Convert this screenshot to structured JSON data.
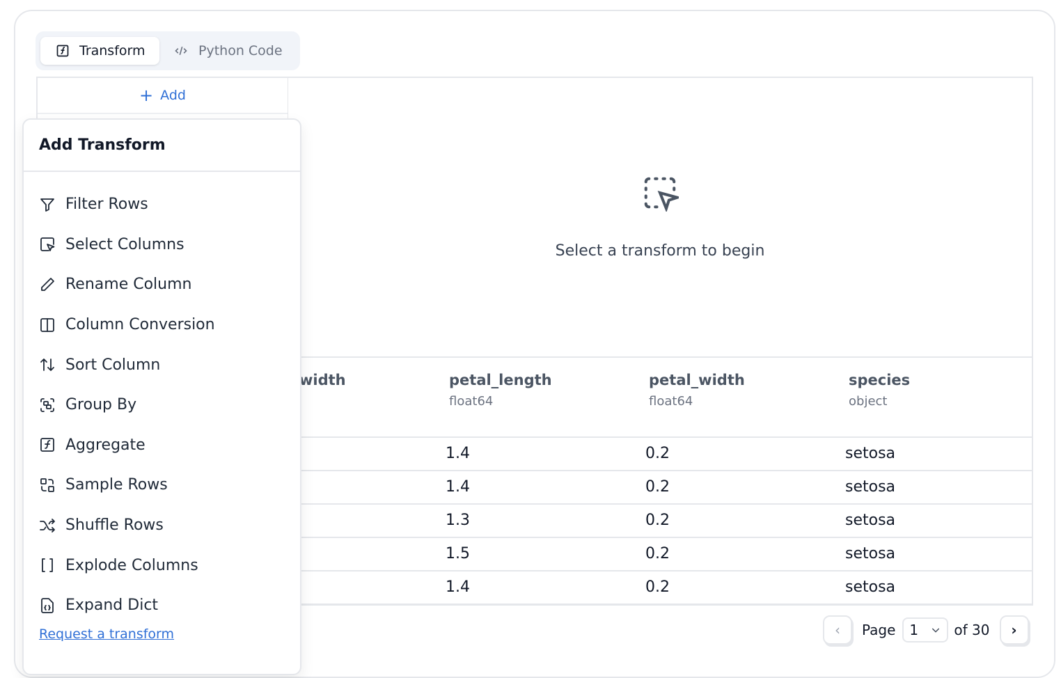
{
  "tabs": [
    {
      "label": "Transform",
      "icon": "function-square-icon",
      "active": true
    },
    {
      "label": "Python Code",
      "icon": "code-icon",
      "active": false
    }
  ],
  "left_panel": {
    "add_label": "Add"
  },
  "empty_state": {
    "icon": "dashed-select-pointer-icon",
    "text": "Select a transform to begin"
  },
  "table": {
    "columns": [
      {
        "name": "width",
        "type": ""
      },
      {
        "name": "petal_length",
        "type": "float64"
      },
      {
        "name": "petal_width",
        "type": "float64"
      },
      {
        "name": "species",
        "type": "object"
      }
    ],
    "rows": [
      [
        "1.4",
        "0.2",
        "setosa"
      ],
      [
        "1.4",
        "0.2",
        "setosa"
      ],
      [
        "1.3",
        "0.2",
        "setosa"
      ],
      [
        "1.5",
        "0.2",
        "setosa"
      ],
      [
        "1.4",
        "0.2",
        "setosa"
      ]
    ]
  },
  "pagination": {
    "page_label": "Page",
    "current_page": "1",
    "of_label": "of 30"
  },
  "popup": {
    "title": "Add Transform",
    "items": [
      {
        "label": "Filter Rows",
        "icon": "filter-icon"
      },
      {
        "label": "Select Columns",
        "icon": "select-pointer-icon"
      },
      {
        "label": "Rename Column",
        "icon": "pencil-icon"
      },
      {
        "label": "Column Conversion",
        "icon": "columns-icon"
      },
      {
        "label": "Sort Column",
        "icon": "sort-arrows-icon"
      },
      {
        "label": "Group By",
        "icon": "group-icon"
      },
      {
        "label": "Aggregate",
        "icon": "function-square-icon"
      },
      {
        "label": "Sample Rows",
        "icon": "sample-icon"
      },
      {
        "label": "Shuffle Rows",
        "icon": "shuffle-icon"
      },
      {
        "label": "Explode Columns",
        "icon": "brackets-icon"
      },
      {
        "label": "Expand Dict",
        "icon": "file-braces-icon"
      }
    ],
    "request_link": "Request a transform"
  },
  "colors": {
    "accent": "#2f6fd6",
    "border": "#e5e7eb",
    "tab_bg": "#f1f4f9"
  }
}
